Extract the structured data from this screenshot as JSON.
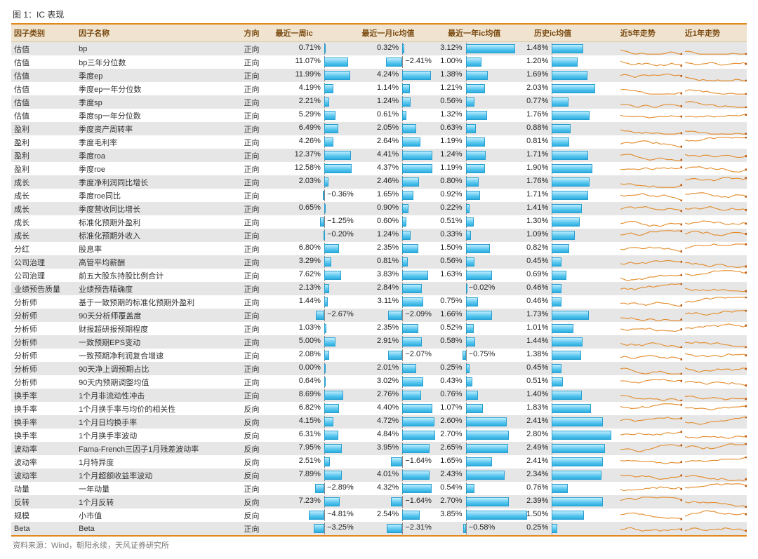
{
  "title": "图 1：IC 表现",
  "source": "资料来源：Wind，朝阳永续，天风证券研究所",
  "colors": {
    "border": "#e08a1e",
    "header_bg": "#f0e4d0",
    "header_fg": "#7a4a10",
    "row_even": "#e6e6e6",
    "row_odd": "#ffffff",
    "bar_grad_top": "#bfeeff",
    "bar_grad_mid": "#5ec8ef",
    "bar_grad_bot": "#29aee0",
    "bar_border": "#2a9fd0",
    "axis": "#888888",
    "spark_line": "#e38b2a",
    "spark_dot": "#c05a10",
    "text": "#333333"
  },
  "columns": [
    {
      "key": "cat",
      "label": "因子类别",
      "type": "text"
    },
    {
      "key": "name",
      "label": "因子名称",
      "type": "text"
    },
    {
      "key": "dir",
      "label": "方向",
      "type": "text"
    },
    {
      "key": "w",
      "label": "最近一周ic",
      "type": "bar",
      "scale": 15,
      "axis": 0.6
    },
    {
      "key": "m",
      "label": "最近一月ic均值",
      "type": "bar",
      "scale": 6,
      "axis": 0.5
    },
    {
      "key": "y",
      "label": "最近一年ic均值",
      "type": "bar",
      "scale": 4,
      "axis": 0.22
    },
    {
      "key": "h",
      "label": "历史ic均值",
      "type": "bar",
      "scale": 3,
      "axis": 0.22
    },
    {
      "key": "s5",
      "label": "近5年走势",
      "type": "spark"
    },
    {
      "key": "s1",
      "label": "近1年走势",
      "type": "spark"
    }
  ],
  "spark_config": {
    "width": 88,
    "height": 16,
    "stroke_width": 1.1,
    "dot_r": 1.6
  },
  "rows": [
    {
      "cat": "估值",
      "name": "bp",
      "dir": "正向",
      "w": 0.71,
      "m": 0.32,
      "y": 3.12,
      "h": 1.48
    },
    {
      "cat": "估值",
      "name": "bp三年分位数",
      "dir": "正向",
      "w": 11.07,
      "m": -2.41,
      "y": 1.0,
      "h": 1.2
    },
    {
      "cat": "估值",
      "name": "季度ep",
      "dir": "正向",
      "w": 11.99,
      "m": 4.24,
      "y": 1.38,
      "h": 1.69
    },
    {
      "cat": "估值",
      "name": "季度ep一年分位数",
      "dir": "正向",
      "w": 4.19,
      "m": 1.14,
      "y": 1.21,
      "h": 2.03
    },
    {
      "cat": "估值",
      "name": "季度sp",
      "dir": "正向",
      "w": 2.21,
      "m": 1.24,
      "y": 0.56,
      "h": 0.77
    },
    {
      "cat": "估值",
      "name": "季度sp一年分位数",
      "dir": "正向",
      "w": 5.29,
      "m": 0.61,
      "y": 1.32,
      "h": 1.76
    },
    {
      "cat": "盈利",
      "name": "季度资产周转率",
      "dir": "正向",
      "w": 6.49,
      "m": 2.05,
      "y": 0.63,
      "h": 0.88
    },
    {
      "cat": "盈利",
      "name": "季度毛利率",
      "dir": "正向",
      "w": 4.26,
      "m": 2.64,
      "y": 1.19,
      "h": 0.81
    },
    {
      "cat": "盈利",
      "name": "季度roa",
      "dir": "正向",
      "w": 12.37,
      "m": 4.41,
      "y": 1.24,
      "h": 1.71
    },
    {
      "cat": "盈利",
      "name": "季度roe",
      "dir": "正向",
      "w": 12.58,
      "m": 4.37,
      "y": 1.19,
      "h": 1.9
    },
    {
      "cat": "成长",
      "name": "季度净利润同比增长",
      "dir": "正向",
      "w": 2.03,
      "m": 2.46,
      "y": 0.8,
      "h": 1.76
    },
    {
      "cat": "成长",
      "name": "季度roe同比",
      "dir": "正向",
      "w": -0.36,
      "m": 1.65,
      "y": 0.92,
      "h": 1.71
    },
    {
      "cat": "成长",
      "name": "季度营收同比增长",
      "dir": "正向",
      "w": 0.65,
      "m": 0.9,
      "y": 0.22,
      "h": 1.41
    },
    {
      "cat": "成长",
      "name": "标准化预期外盈利",
      "dir": "正向",
      "w": -1.25,
      "m": 0.6,
      "y": 0.51,
      "h": 1.3
    },
    {
      "cat": "成长",
      "name": "标准化预期外收入",
      "dir": "正向",
      "w": -0.2,
      "m": 1.24,
      "y": 0.33,
      "h": 1.09
    },
    {
      "cat": "分红",
      "name": "股息率",
      "dir": "正向",
      "w": 6.8,
      "m": 2.35,
      "y": 1.5,
      "h": 0.82
    },
    {
      "cat": "公司治理",
      "name": "高管平均薪酬",
      "dir": "正向",
      "w": 3.29,
      "m": 0.81,
      "y": 0.56,
      "h": 0.45
    },
    {
      "cat": "公司治理",
      "name": "前五大股东持股比例合计",
      "dir": "正向",
      "w": 7.62,
      "m": 3.83,
      "y": 1.63,
      "h": 0.69
    },
    {
      "cat": "业绩预告质量",
      "name": "业绩预告精确度",
      "dir": "正向",
      "w": 2.13,
      "m": 2.84,
      "y": -0.02,
      "h": 0.46
    },
    {
      "cat": "分析师",
      "name": "基于一致预期的标准化预期外盈利",
      "dir": "正向",
      "w": 1.44,
      "m": 3.11,
      "y": 0.75,
      "h": 0.46
    },
    {
      "cat": "分析师",
      "name": "90天分析师覆盖度",
      "dir": "正向",
      "w": -2.67,
      "m": -2.09,
      "y": 1.66,
      "h": 1.73
    },
    {
      "cat": "分析师",
      "name": "财报超研报预期程度",
      "dir": "正向",
      "w": 1.03,
      "m": 2.35,
      "y": 0.52,
      "h": 1.01
    },
    {
      "cat": "分析师",
      "name": "一致预期EPS变动",
      "dir": "正向",
      "w": 5.0,
      "m": 2.91,
      "y": 0.58,
      "h": 1.44
    },
    {
      "cat": "分析师",
      "name": "一致预期净利润复合增速",
      "dir": "正向",
      "w": 2.08,
      "m": -2.07,
      "y": -0.75,
      "h": 1.38
    },
    {
      "cat": "分析师",
      "name": "90天净上调预期占比",
      "dir": "正向",
      "w": 0.0,
      "m": 2.01,
      "y": 0.25,
      "h": 0.45
    },
    {
      "cat": "分析师",
      "name": "90天内预期调整均值",
      "dir": "正向",
      "w": 0.64,
      "m": 3.02,
      "y": 0.43,
      "h": 0.51
    },
    {
      "cat": "换手率",
      "name": "1个月非流动性冲击",
      "dir": "正向",
      "w": 8.69,
      "m": 2.76,
      "y": 0.76,
      "h": 1.4
    },
    {
      "cat": "换手率",
      "name": "1个月换手率与均价的相关性",
      "dir": "反向",
      "w": 6.82,
      "m": 4.4,
      "y": 1.07,
      "h": 1.83
    },
    {
      "cat": "换手率",
      "name": "1个月日均换手率",
      "dir": "反向",
      "w": 4.15,
      "m": 4.72,
      "y": 2.6,
      "h": 2.41
    },
    {
      "cat": "换手率",
      "name": "1个月换手率波动",
      "dir": "反向",
      "w": 6.31,
      "m": 4.84,
      "y": 2.7,
      "h": 2.8
    },
    {
      "cat": "波动率",
      "name": "Fama-French三因子1月残差波动率",
      "dir": "反向",
      "w": 7.95,
      "m": 3.95,
      "y": 2.65,
      "h": 2.49
    },
    {
      "cat": "波动率",
      "name": "1月特异度",
      "dir": "反向",
      "w": 2.51,
      "m": -1.64,
      "y": 1.65,
      "h": 2.41
    },
    {
      "cat": "波动率",
      "name": "1个月超额收益率波动",
      "dir": "反向",
      "w": 7.89,
      "m": 4.01,
      "y": 2.43,
      "h": 2.34
    },
    {
      "cat": "动量",
      "name": "一年动量",
      "dir": "正向",
      "w": -2.89,
      "m": 4.32,
      "y": 0.54,
      "h": 0.76
    },
    {
      "cat": "反转",
      "name": "1个月反转",
      "dir": "反向",
      "w": 7.23,
      "m": -1.64,
      "y": 2.7,
      "h": 2.39
    },
    {
      "cat": "规模",
      "name": "小市值",
      "dir": "反向",
      "w": -4.81,
      "m": 2.54,
      "y": 3.85,
      "h": 1.5
    },
    {
      "cat": "Beta",
      "name": "Beta",
      "dir": "正向",
      "w": -3.25,
      "m": -2.31,
      "y": -0.58,
      "h": 0.25
    }
  ]
}
